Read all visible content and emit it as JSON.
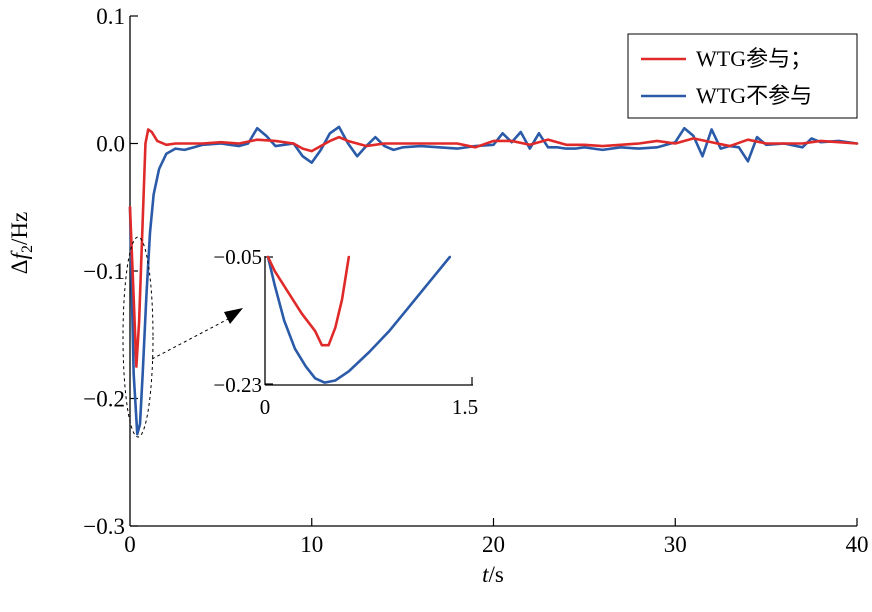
{
  "chart_data": [
    {
      "type": "line",
      "title": "",
      "xlabel": {
        "var": "t",
        "unit": "/s"
      },
      "ylabel": {
        "prefix": "Δ",
        "var": "f",
        "sub": "2",
        "unit": "/Hz"
      },
      "xlim": [
        0,
        40
      ],
      "ylim": [
        -0.3,
        0.1
      ],
      "xticks": [
        0,
        10,
        20,
        30,
        40
      ],
      "xtick_labels": [
        "0",
        "10",
        "20",
        "30",
        "40"
      ],
      "yticks": [
        -0.3,
        -0.2,
        -0.1,
        0.0,
        0.1
      ],
      "ytick_labels": [
        "−0.3",
        "−0.2",
        "−0.1",
        "0.0",
        "0.1"
      ],
      "grid": false,
      "legend_position": "top-right",
      "series": [
        {
          "name": "WTG参与；",
          "color": "#e02a2a",
          "x": [
            0.0,
            0.2,
            0.35,
            0.5,
            0.7,
            0.85,
            1.0,
            1.2,
            1.5,
            2.0,
            2.5,
            3.0,
            4.0,
            5.0,
            6.0,
            7.0,
            8.0,
            9.0,
            9.5,
            10.0,
            10.5,
            11.0,
            11.5,
            12.0,
            13.0,
            14.0,
            15.0,
            16.0,
            17.0,
            18.0,
            19.0,
            20.0,
            21.0,
            22.0,
            23.0,
            24.0,
            25.0,
            26.0,
            27.0,
            28.0,
            29.0,
            30.0,
            31.0,
            32.0,
            33.0,
            34.0,
            35.0,
            36.0,
            37.0,
            38.0,
            39.0,
            40.0
          ],
          "y": [
            -0.05,
            -0.12,
            -0.175,
            -0.14,
            -0.06,
            0.0,
            0.011,
            0.009,
            0.002,
            -0.001,
            0.0,
            0.0,
            0.0,
            0.001,
            0.0,
            0.003,
            0.002,
            0.0,
            -0.004,
            -0.006,
            -0.002,
            0.002,
            0.005,
            0.002,
            -0.002,
            0.0,
            0.0,
            0.0,
            0.0,
            0.0,
            -0.003,
            0.002,
            0.002,
            -0.001,
            0.003,
            -0.001,
            -0.001,
            -0.002,
            -0.001,
            0.0,
            0.002,
            0.0,
            0.004,
            0.001,
            -0.002,
            0.003,
            0.0,
            0.0,
            0.0,
            0.002,
            0.001,
            0.0
          ]
        },
        {
          "name": "WTG不参与",
          "color": "#2a5aa8",
          "x": [
            0.0,
            0.2,
            0.4,
            0.55,
            0.7,
            0.9,
            1.1,
            1.3,
            1.6,
            2.0,
            2.5,
            3.0,
            3.5,
            4.0,
            5.0,
            6.0,
            6.5,
            7.0,
            7.5,
            8.0,
            9.0,
            9.5,
            10.0,
            10.5,
            11.0,
            11.5,
            12.0,
            12.5,
            13.0,
            13.5,
            14.0,
            14.5,
            15.0,
            16.0,
            17.0,
            18.0,
            19.0,
            20.0,
            20.5,
            21.0,
            21.5,
            22.0,
            22.5,
            23.0,
            23.5,
            24.0,
            24.5,
            25.0,
            25.5,
            26.0,
            27.0,
            28.0,
            29.0,
            30.0,
            30.5,
            31.0,
            31.5,
            32.0,
            32.5,
            33.0,
            33.5,
            34.0,
            34.5,
            35.0,
            36.0,
            37.0,
            37.5,
            38.0,
            39.0,
            40.0
          ],
          "y": [
            -0.05,
            -0.18,
            -0.228,
            -0.22,
            -0.18,
            -0.12,
            -0.07,
            -0.04,
            -0.02,
            -0.008,
            -0.004,
            -0.005,
            -0.003,
            -0.001,
            0.0,
            -0.002,
            0.0,
            0.012,
            0.006,
            -0.002,
            0.0,
            -0.01,
            -0.015,
            -0.005,
            0.008,
            0.013,
            0.0,
            -0.01,
            -0.002,
            0.005,
            -0.002,
            -0.005,
            -0.003,
            -0.002,
            -0.003,
            -0.004,
            -0.002,
            -0.001,
            0.008,
            0.001,
            0.009,
            -0.004,
            0.008,
            -0.003,
            -0.003,
            -0.004,
            -0.004,
            -0.003,
            -0.004,
            -0.005,
            -0.003,
            -0.004,
            -0.003,
            0.001,
            0.012,
            0.006,
            -0.01,
            0.011,
            -0.004,
            -0.002,
            -0.003,
            -0.014,
            0.005,
            -0.001,
            0.0,
            -0.003,
            0.004,
            0.001,
            0.002,
            0.0
          ]
        }
      ]
    },
    {
      "type": "line",
      "title": "",
      "xlim": [
        0,
        1.5
      ],
      "ylim": [
        -0.23,
        -0.05
      ],
      "xtick_labels": [
        "0",
        "1.5"
      ],
      "ytick_labels": [
        "−0.05",
        "−0.23"
      ],
      "series": [
        {
          "name": "WTG参与；",
          "color": "#e02a2a",
          "x": [
            0.0,
            0.05,
            0.15,
            0.25,
            0.35,
            0.4,
            0.45,
            0.5,
            0.55,
            0.6
          ],
          "y": [
            -0.05,
            -0.07,
            -0.1,
            -0.13,
            -0.155,
            -0.175,
            -0.175,
            -0.15,
            -0.11,
            -0.05
          ]
        },
        {
          "name": "WTG不参与",
          "color": "#2a5aa8",
          "x": [
            0.0,
            0.05,
            0.12,
            0.2,
            0.28,
            0.35,
            0.42,
            0.5,
            0.6,
            0.75,
            0.9,
            1.05,
            1.2,
            1.35
          ],
          "y": [
            -0.05,
            -0.09,
            -0.14,
            -0.18,
            -0.205,
            -0.222,
            -0.228,
            -0.225,
            -0.212,
            -0.185,
            -0.155,
            -0.12,
            -0.085,
            -0.05
          ]
        }
      ]
    }
  ]
}
